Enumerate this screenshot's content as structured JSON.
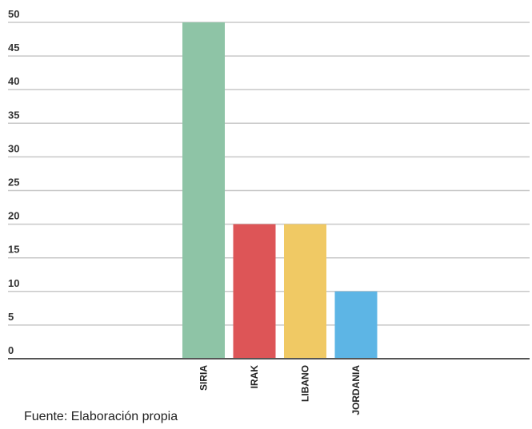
{
  "chart_data": {
    "type": "bar",
    "categories": [
      "SIRIA",
      "IRAK",
      "LIBANO",
      "JORDANIA"
    ],
    "values": [
      50,
      20,
      20,
      10
    ],
    "colors": [
      "#8ec4a6",
      "#dd5557",
      "#f0c964",
      "#5db5e5"
    ],
    "yticks": [
      "0",
      "5",
      "10",
      "15",
      "20",
      "25",
      "30",
      "35",
      "40",
      "45",
      "50"
    ],
    "ylim": [
      0,
      50
    ],
    "grid": true,
    "legend": "none"
  },
  "footer": {
    "source": "Fuente: Elaboración propia"
  }
}
